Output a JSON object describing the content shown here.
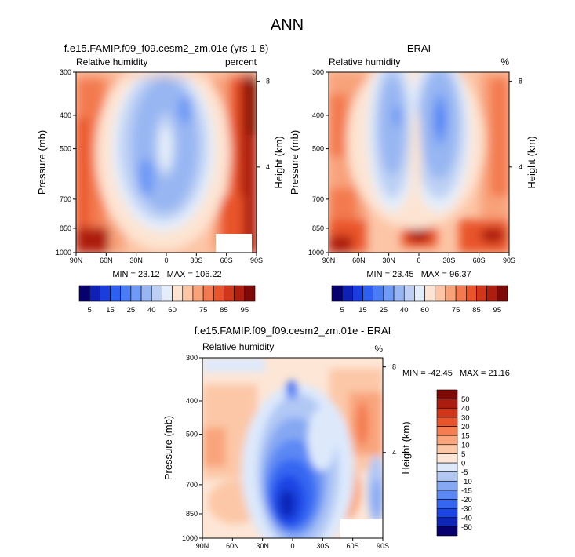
{
  "figure": {
    "title": "ANN"
  },
  "chart_data": [
    {
      "type": "heatmap",
      "title": "f.e15.FAMIP.f09_f09.cesm2_zm.01e (yrs 1-8)",
      "left_label": "Relative humidity",
      "units": "percent",
      "xlabel": "",
      "ylabel": "Pressure (mb)",
      "y2label": "Height (km)",
      "x_tick_labels": [
        "90N",
        "60N",
        "30N",
        "0",
        "30S",
        "60S",
        "90S"
      ],
      "y_tick_labels": [
        "300",
        "400",
        "500",
        "700",
        "850",
        "1000"
      ],
      "y_tick_values": [
        300,
        400,
        500,
        700,
        850,
        1000
      ],
      "y2_tick_labels": [
        "8",
        "4"
      ],
      "y2_tick_values": [
        8,
        4
      ],
      "xlim": [
        90,
        -90
      ],
      "ylim": [
        1000,
        300
      ],
      "stats": {
        "min_label": "MIN =",
        "min": "23.12",
        "max_label": "MAX =",
        "max": "106.22"
      },
      "colorbar": {
        "orientation": "horizontal",
        "levels": [
          5,
          10,
          15,
          20,
          25,
          30,
          40,
          50,
          60,
          65,
          70,
          75,
          80,
          85,
          90,
          95
        ],
        "labels": [
          "5",
          "15",
          "25",
          "40",
          "60",
          "75",
          "85",
          "95"
        ],
        "colors": [
          "#08006e",
          "#0f20b4",
          "#1a3de0",
          "#2d5ff0",
          "#4a7df5",
          "#6f9af5",
          "#97b6f2",
          "#bdd0f4",
          "#e4eefa",
          "#fde4d2",
          "#fcc5a6",
          "#f8a27a",
          "#f37a50",
          "#e9542a",
          "#d1351a",
          "#ad1e0f",
          "#7d0a06"
        ]
      }
    },
    {
      "type": "heatmap",
      "title": "ERAI",
      "left_label": "Relative humidity",
      "units": "%",
      "xlabel": "",
      "ylabel": "Pressure (mb)",
      "y2label": "Height (km)",
      "x_tick_labels": [
        "90N",
        "60N",
        "30N",
        "0",
        "30S",
        "60S",
        "90S"
      ],
      "y_tick_labels": [
        "300",
        "400",
        "500",
        "700",
        "850",
        "1000"
      ],
      "y_tick_values": [
        300,
        400,
        500,
        700,
        850,
        1000
      ],
      "y2_tick_labels": [
        "8",
        "4"
      ],
      "y2_tick_values": [
        8,
        4
      ],
      "xlim": [
        90,
        -90
      ],
      "ylim": [
        1000,
        300
      ],
      "stats": {
        "min_label": "MIN =",
        "min": "23.45",
        "max_label": "MAX =",
        "max": "96.37"
      },
      "colorbar": {
        "orientation": "horizontal",
        "levels": [
          5,
          10,
          15,
          20,
          25,
          30,
          40,
          50,
          60,
          65,
          70,
          75,
          80,
          85,
          90,
          95
        ],
        "labels": [
          "5",
          "15",
          "25",
          "40",
          "60",
          "75",
          "85",
          "95"
        ],
        "colors": [
          "#08006e",
          "#0f20b4",
          "#1a3de0",
          "#2d5ff0",
          "#4a7df5",
          "#6f9af5",
          "#97b6f2",
          "#bdd0f4",
          "#e4eefa",
          "#fde4d2",
          "#fcc5a6",
          "#f8a27a",
          "#f37a50",
          "#e9542a",
          "#d1351a",
          "#ad1e0f",
          "#7d0a06"
        ]
      }
    },
    {
      "type": "heatmap",
      "title": "f.e15.FAMIP.f09_f09.cesm2_zm.01e - ERAI",
      "left_label": "Relative humidity",
      "units": "%",
      "xlabel": "",
      "ylabel": "Pressure (mb)",
      "y2label": "Height (km)",
      "x_tick_labels": [
        "90N",
        "60N",
        "30N",
        "0",
        "30S",
        "60S",
        "90S"
      ],
      "y_tick_labels": [
        "300",
        "400",
        "500",
        "700",
        "850",
        "1000"
      ],
      "y_tick_values": [
        300,
        400,
        500,
        700,
        850,
        1000
      ],
      "y2_tick_labels": [
        "8",
        "4"
      ],
      "y2_tick_values": [
        8,
        4
      ],
      "xlim": [
        90,
        -90
      ],
      "ylim": [
        1000,
        300
      ],
      "stats": {
        "min_label": "MIN =",
        "min": "-42.45",
        "max_label": "MAX =",
        "max": "21.16"
      },
      "colorbar": {
        "orientation": "vertical",
        "levels": [
          -50,
          -40,
          -30,
          -20,
          -15,
          -10,
          -5,
          0,
          5,
          10,
          15,
          20,
          30,
          40,
          50
        ],
        "labels": [
          "-50",
          "-40",
          "-30",
          "-20",
          "-15",
          "-10",
          "-5",
          "0",
          "5",
          "10",
          "15",
          "20",
          "30",
          "40",
          "50"
        ],
        "colors": [
          "#08006e",
          "#0f25b8",
          "#1a44e4",
          "#3466f2",
          "#5b88f4",
          "#86a8f3",
          "#b1c8f5",
          "#dde9fb",
          "#fde6d6",
          "#fcc7a7",
          "#f9a47b",
          "#f47d52",
          "#ea542b",
          "#d1351a",
          "#ab1d0f",
          "#7d0a06"
        ]
      }
    }
  ]
}
